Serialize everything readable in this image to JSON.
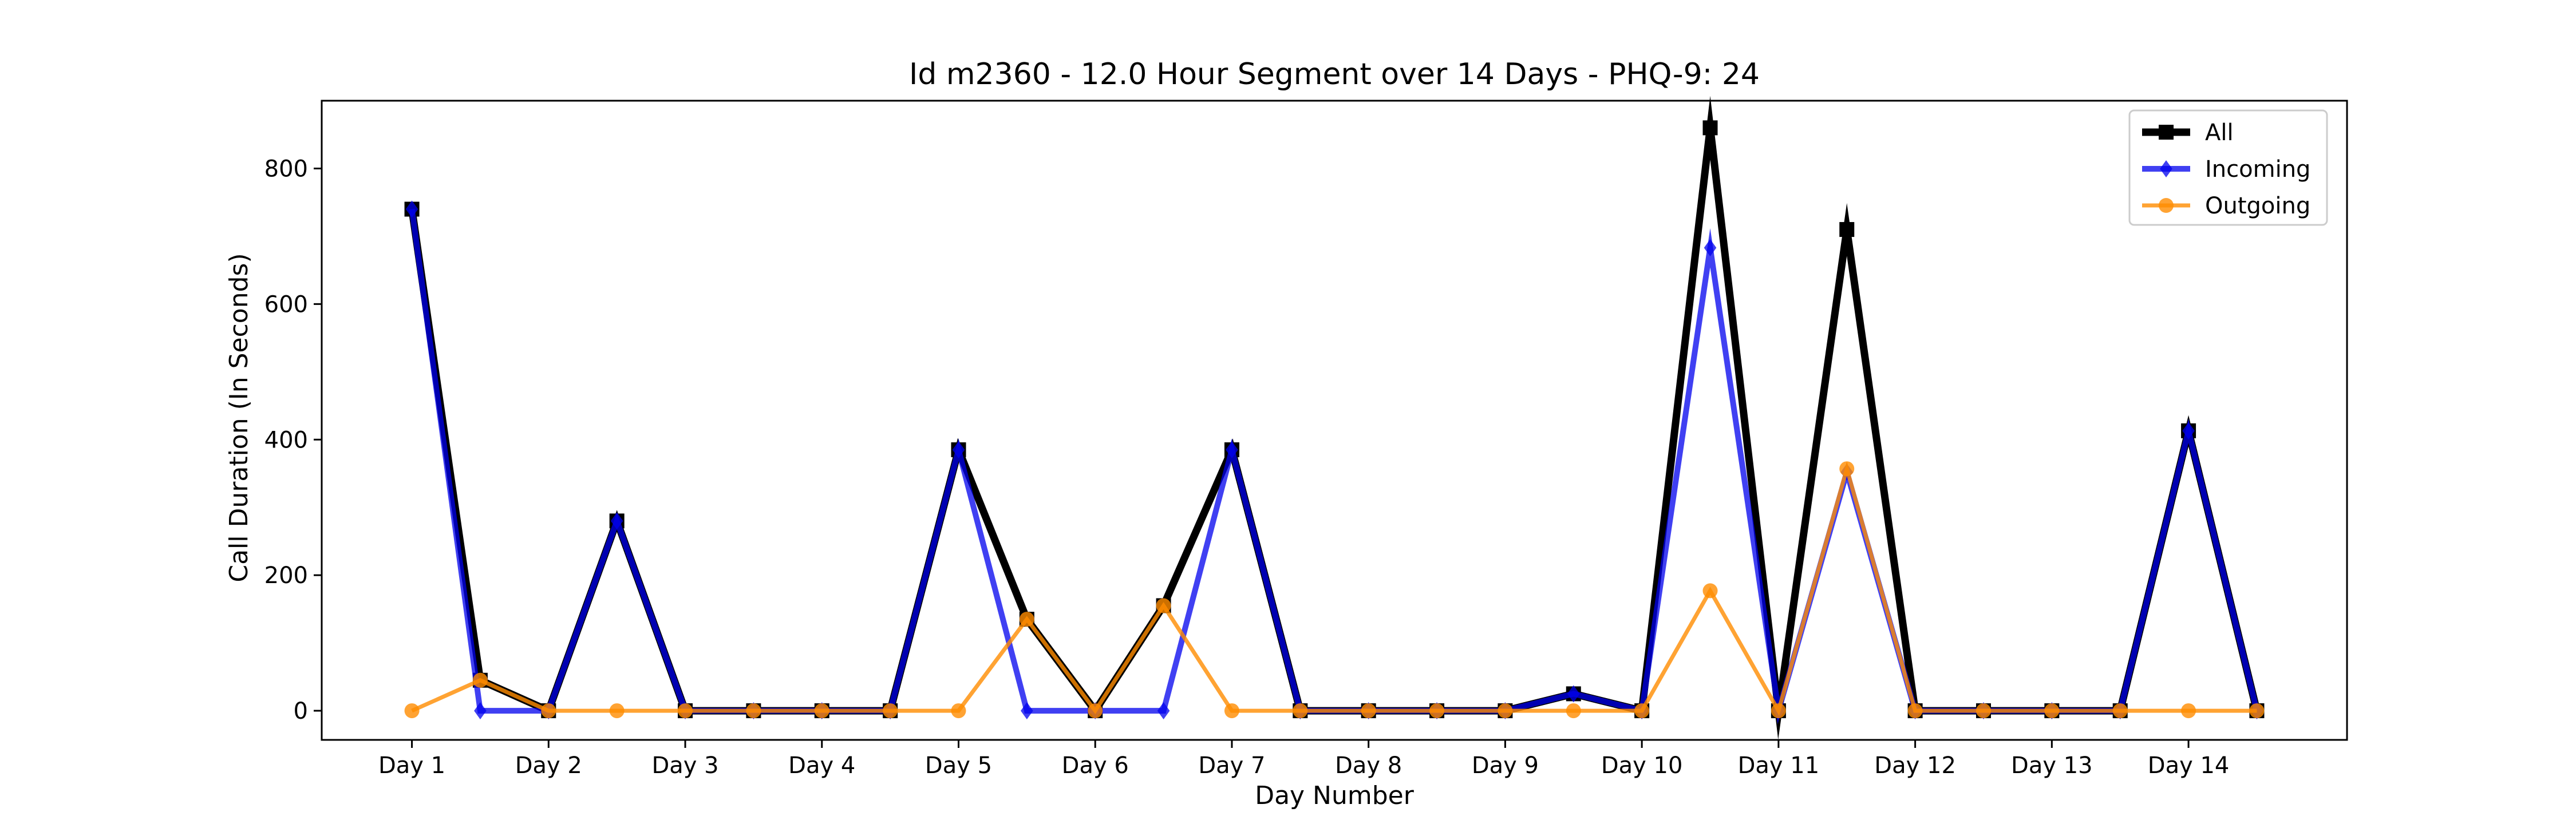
{
  "chart_data": {
    "type": "line",
    "title": "Id m2360 - 12.0 Hour Segment over 14 Days - PHQ-9: 24",
    "xlabel": "Day Number",
    "ylabel": "Call Duration (In Seconds)",
    "x": [
      1,
      1.5,
      2,
      2.5,
      3,
      3.5,
      4,
      4.5,
      5,
      5.5,
      6,
      6.5,
      7,
      7.5,
      8,
      8.5,
      9,
      9.5,
      10,
      10.5,
      11,
      11.5,
      12,
      12.5,
      13,
      13.5,
      14,
      14.5
    ],
    "xticks": [
      1,
      2,
      3,
      4,
      5,
      6,
      7,
      8,
      9,
      10,
      11,
      12,
      13,
      14
    ],
    "xtick_labels": [
      "Day 1",
      "Day 2",
      "Day 3",
      "Day 4",
      "Day 5",
      "Day 6",
      "Day 7",
      "Day 8",
      "Day 9",
      "Day 10",
      "Day 11",
      "Day 12",
      "Day 13",
      "Day 14"
    ],
    "yticks": [
      0,
      200,
      400,
      600,
      800
    ],
    "ytick_labels": [
      "0",
      "200",
      "400",
      "600",
      "800"
    ],
    "xlim": [
      0.34,
      15.16
    ],
    "ylim": [
      -43,
      900
    ],
    "grid": false,
    "legend_position": "top-right",
    "series": [
      {
        "name": "All",
        "color": "#000000",
        "marker": "square",
        "values": [
          740,
          45,
          0,
          280,
          0,
          0,
          0,
          0,
          385,
          135,
          0,
          155,
          385,
          0,
          0,
          0,
          0,
          25,
          0,
          860,
          0,
          710,
          0,
          0,
          0,
          0,
          413,
          0
        ]
      },
      {
        "name": "Incoming",
        "color": "#0000ee",
        "marker": "diamond",
        "values": [
          740,
          0,
          0,
          280,
          0,
          0,
          0,
          0,
          385,
          0,
          0,
          0,
          385,
          0,
          0,
          0,
          0,
          25,
          0,
          683,
          0,
          352,
          0,
          0,
          0,
          0,
          413,
          0
        ]
      },
      {
        "name": "Outgoing",
        "color": "#ff8c00",
        "marker": "circle",
        "values": [
          0,
          45,
          0,
          0,
          0,
          0,
          0,
          0,
          0,
          135,
          0,
          155,
          0,
          0,
          0,
          0,
          0,
          0,
          0,
          177,
          0,
          357,
          0,
          0,
          0,
          0,
          0,
          0
        ]
      }
    ]
  }
}
